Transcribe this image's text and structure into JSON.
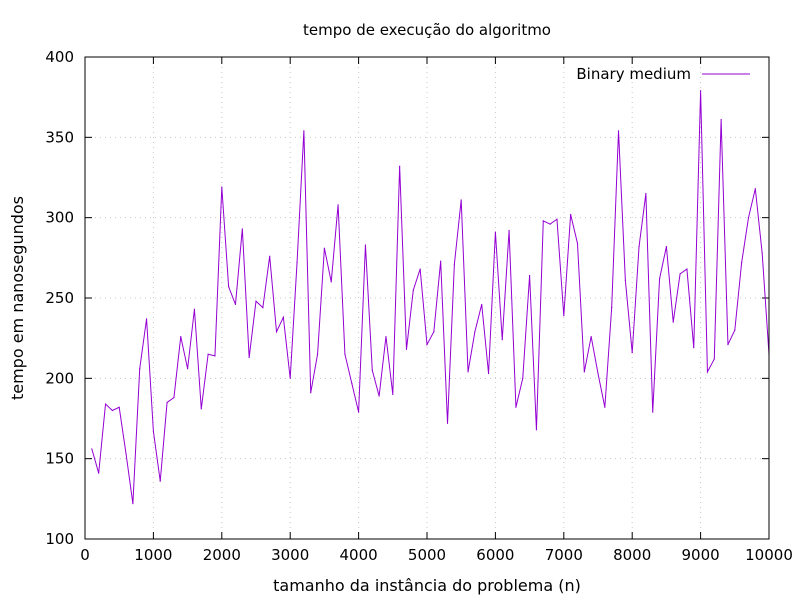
{
  "chart_data": {
    "type": "line",
    "title": "tempo de execução do algoritmo",
    "xlabel": "tamanho da instância do problema (n)",
    "ylabel": "tempo em nanosegundos",
    "xlim": [
      0,
      10000
    ],
    "ylim": [
      100,
      400
    ],
    "xticks": [
      0,
      1000,
      2000,
      3000,
      4000,
      5000,
      6000,
      7000,
      8000,
      9000,
      10000
    ],
    "yticks": [
      100,
      150,
      200,
      250,
      300,
      350,
      400
    ],
    "grid": true,
    "legend_position": "top-right",
    "series": [
      {
        "name": "Binary medium",
        "color": "#9400d3",
        "x": [
          100,
          200,
          300,
          400,
          500,
          600,
          700,
          800,
          900,
          1000,
          1100,
          1200,
          1300,
          1400,
          1500,
          1600,
          1700,
          1800,
          1900,
          2000,
          2100,
          2200,
          2300,
          2400,
          2500,
          2600,
          2700,
          2800,
          2900,
          3000,
          3100,
          3200,
          3300,
          3400,
          3500,
          3600,
          3700,
          3800,
          3900,
          4000,
          4100,
          4200,
          4300,
          4400,
          4500,
          4600,
          4700,
          4800,
          4900,
          5000,
          5100,
          5200,
          5300,
          5400,
          5500,
          5600,
          5700,
          5800,
          5900,
          6000,
          6100,
          6200,
          6300,
          6400,
          6500,
          6600,
          6700,
          6800,
          6900,
          7000,
          7100,
          7200,
          7300,
          7400,
          7500,
          7600,
          7700,
          7800,
          7900,
          8000,
          8100,
          8200,
          8300,
          8400,
          8500,
          8600,
          8700,
          8800,
          8900,
          9000,
          9100,
          9200,
          9300,
          9400,
          9500,
          9600,
          9700,
          9800,
          9900,
          10000
        ],
        "y": [
          156,
          141,
          184,
          180,
          182,
          153,
          122,
          206,
          237,
          167,
          136,
          185,
          188,
          226,
          206,
          243,
          181,
          215,
          214,
          319,
          257,
          246,
          293,
          213,
          248,
          244,
          276,
          229,
          238,
          200,
          272,
          354,
          191,
          215,
          281,
          260,
          308,
          215,
          197,
          179,
          283,
          205,
          189,
          226,
          190,
          332,
          218,
          255,
          268,
          221,
          229,
          273,
          172,
          271,
          311,
          204,
          229,
          246,
          203,
          291,
          224,
          292,
          182,
          200,
          264,
          168,
          298,
          296,
          299,
          239,
          302,
          284,
          204,
          226,
          203,
          182,
          244,
          354,
          261,
          216,
          282,
          315,
          179,
          262,
          282,
          235,
          265,
          268,
          219,
          379,
          204,
          212,
          361,
          221,
          230,
          272,
          300,
          318,
          278,
          215
        ]
      }
    ]
  }
}
